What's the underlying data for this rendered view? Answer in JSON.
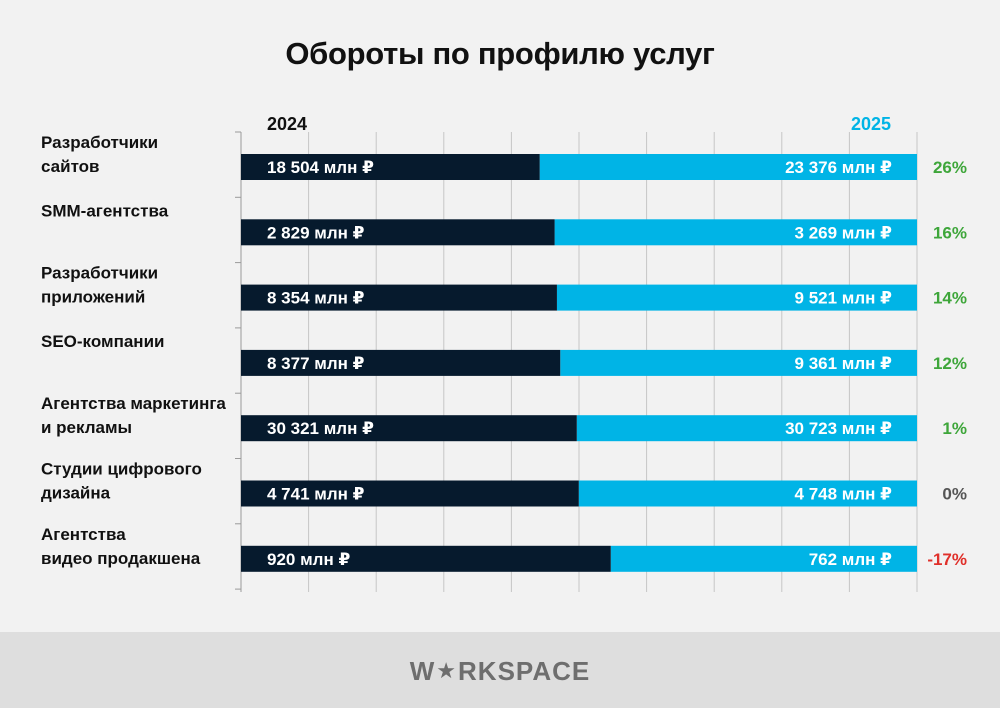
{
  "title": "Обороты по профилю услуг",
  "logo": {
    "before": "W",
    "star": "★",
    "after": "RKSPACE"
  },
  "colors": {
    "y2024": "#061a2d",
    "y2025": "#00b4e6",
    "positive": "#3ea63a",
    "neutral": "#555555",
    "negative": "#e0302a"
  },
  "chart_data": {
    "type": "bar",
    "series": [
      {
        "name": "2024",
        "values": [
          18504,
          2829,
          8354,
          8377,
          30321,
          4741,
          920
        ]
      },
      {
        "name": "2025",
        "values": [
          23376,
          3269,
          9521,
          9361,
          30723,
          4748,
          762
        ]
      }
    ],
    "unit": "млн ₽",
    "rows": [
      {
        "label": [
          "Разработчики",
          "сайтов"
        ],
        "v2024": "18 504 млн ₽",
        "v2025": "23 376 млн ₽",
        "change": "26%",
        "trend": "positive"
      },
      {
        "label": [
          "SMM-агентства"
        ],
        "v2024": "2 829 млн ₽",
        "v2025": "3 269 млн ₽",
        "change": "16%",
        "trend": "positive"
      },
      {
        "label": [
          "Разработчики",
          "приложений"
        ],
        "v2024": "8 354 млн ₽",
        "v2025": "9 521 млн ₽",
        "change": "14%",
        "trend": "positive"
      },
      {
        "label": [
          "SEO-компании"
        ],
        "v2024": "8 377 млн ₽",
        "v2025": "9 361 млн ₽",
        "change": "12%",
        "trend": "positive"
      },
      {
        "label": [
          "Агентства маркетинга",
          "и рекламы"
        ],
        "v2024": "30 321 млн ₽",
        "v2025": "30 723 млн ₽",
        "change": "1%",
        "trend": "positive"
      },
      {
        "label": [
          "Студии цифрового",
          "дизайна"
        ],
        "v2024": "4 741 млн ₽",
        "v2025": "4 748 млн ₽",
        "change": "0%",
        "trend": "neutral"
      },
      {
        "label": [
          "Агентства",
          "видео продакшена"
        ],
        "v2024": "920 млн ₽",
        "v2025": "762 млн ₽",
        "change": "-17%",
        "trend": "negative"
      }
    ],
    "grid": true,
    "legend": "top"
  }
}
